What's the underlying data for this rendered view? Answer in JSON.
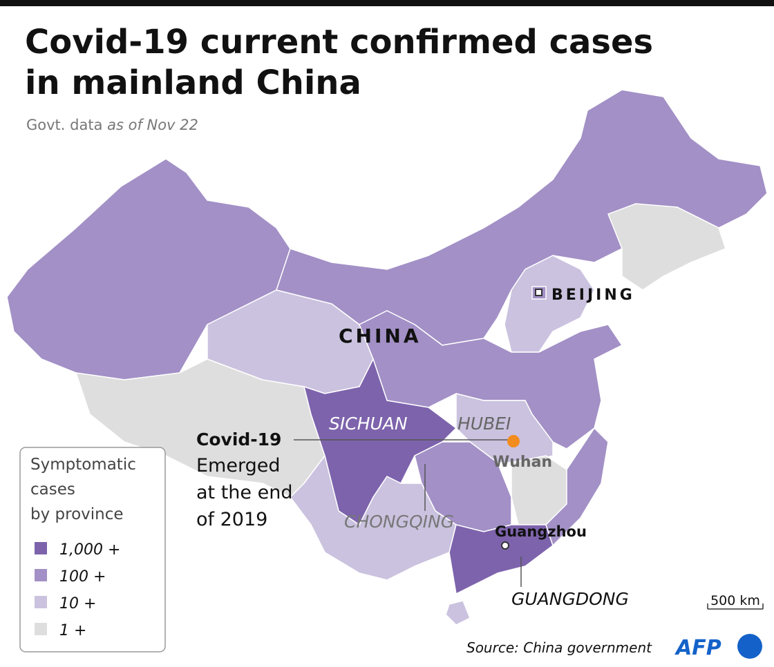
{
  "header": {
    "title": [
      "Covid-19 current confirmed cases",
      "in mainland China"
    ],
    "subtitle": "Govt. data",
    "subtitle_date": "as of Nov 22"
  },
  "map": {
    "labels": {
      "country": "CHINA",
      "capital": "BEIJING",
      "sichuan": "SICHUAN",
      "hubei": "HUBEI",
      "wuhan": "Wuhan",
      "chongqing": "CHONGQING",
      "guangzhou": "Guangzhou",
      "guangdong": "GUANGDONG"
    },
    "annotation": {
      "title": "Covid-19",
      "lines": [
        "Emerged",
        "at the end",
        "of 2019"
      ]
    },
    "scale": "500 km"
  },
  "legend": {
    "title": [
      "Symptomatic",
      "cases",
      "by province"
    ],
    "items": [
      {
        "label": "1,000 +",
        "color": "#7d63ac"
      },
      {
        "label": "100 +",
        "color": "#a290c6"
      },
      {
        "label": "10 +",
        "color": "#cbc2df"
      },
      {
        "label": "1 +",
        "color": "#dedede"
      }
    ]
  },
  "footer": {
    "source": "Source: China government",
    "logo": "AFP"
  }
}
